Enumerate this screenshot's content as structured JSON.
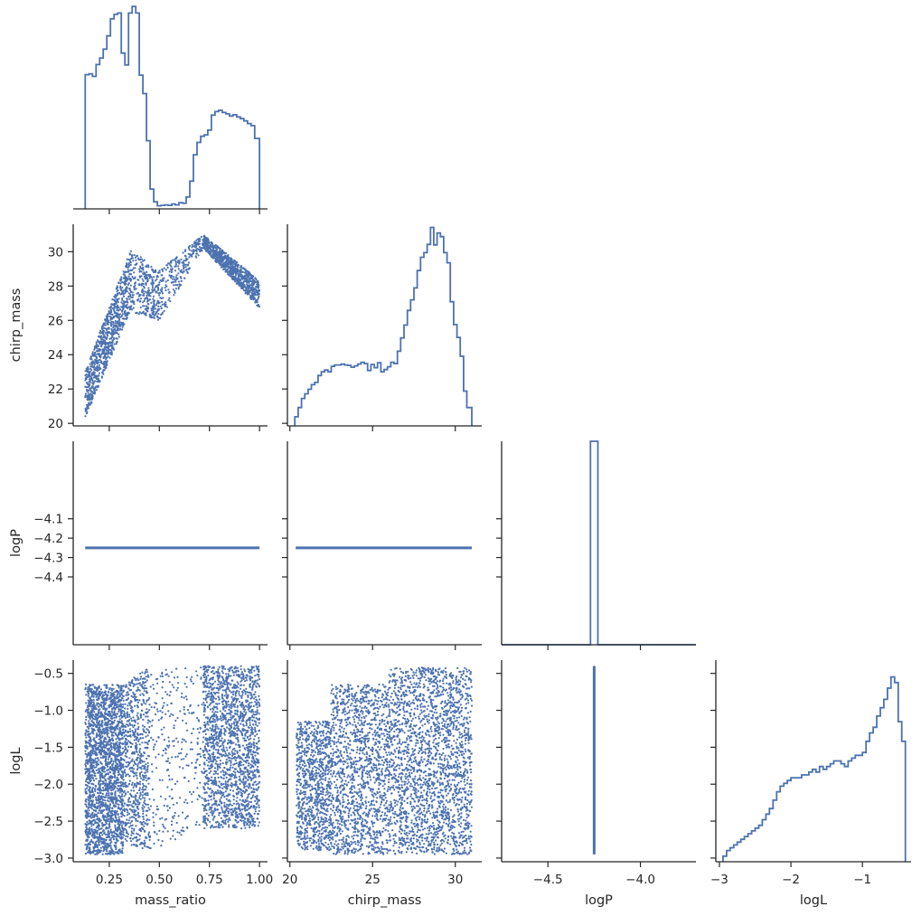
{
  "chart_data": {
    "type": "scatter",
    "layout": "corner-plot",
    "variables": [
      "mass_ratio",
      "chirp_mass",
      "logP",
      "logL"
    ],
    "color": "#4c72b0",
    "ranges": {
      "mass_ratio": [
        0.07,
        1.04
      ],
      "chirp_mass": [
        19.85,
        31.6
      ],
      "logP": [
        -4.75,
        -3.7
      ],
      "logL": [
        -3.05,
        -0.32
      ]
    },
    "hist_ranges": {
      "mass_ratio": [
        0.0,
        0.045
      ],
      "chirp_mass": [
        0.0,
        0.044
      ],
      "logP": [
        0.0,
        1.0
      ],
      "logL": [
        0.0,
        0.72
      ]
    },
    "ticks": {
      "mass_ratio": [
        {
          "v": 0.25,
          "label": "0.25"
        },
        {
          "v": 0.5,
          "label": "0.50"
        },
        {
          "v": 0.75,
          "label": "0.75"
        },
        {
          "v": 1.0,
          "label": "1.00"
        }
      ],
      "chirp_mass": [
        {
          "v": 20,
          "label": "20"
        },
        {
          "v": 25,
          "label": "25"
        },
        {
          "v": 30,
          "label": "30"
        }
      ],
      "logP": [
        {
          "v": -4.5,
          "label": "−4.5"
        },
        {
          "v": -4.0,
          "label": "−4.0"
        }
      ],
      "logL": [
        {
          "v": -3,
          "label": "−3"
        },
        {
          "v": -2,
          "label": "−2"
        },
        {
          "v": -1,
          "label": "−1"
        }
      ]
    },
    "y_ticks": {
      "chirp_mass": [
        {
          "v": 20,
          "label": "20"
        },
        {
          "v": 22,
          "label": "22"
        },
        {
          "v": 24,
          "label": "24"
        },
        {
          "v": 26,
          "label": "26"
        },
        {
          "v": 28,
          "label": "28"
        },
        {
          "v": 30,
          "label": "30"
        }
      ],
      "logP": [
        {
          "v": -4.1,
          "label": "−4.1"
        },
        {
          "v": -4.2,
          "label": "−4.2"
        },
        {
          "v": -4.3,
          "label": "−4.3"
        },
        {
          "v": -4.4,
          "label": "−4.4"
        }
      ],
      "logL": [
        {
          "v": -0.5,
          "label": "−0.5"
        },
        {
          "v": -1.0,
          "label": "−1.0"
        },
        {
          "v": -1.5,
          "label": "−1.5"
        },
        {
          "v": -2.0,
          "label": "−2.0"
        },
        {
          "v": -2.5,
          "label": "−2.5"
        },
        {
          "v": -3.0,
          "label": "−3.0"
        }
      ]
    },
    "xlabels": [
      "mass_ratio",
      "chirp_mass",
      "logP",
      "logL"
    ],
    "ylabels": [
      "",
      "chirp_mass",
      "logP",
      "logL"
    ],
    "constant_values": {
      "logP": -4.25
    },
    "histograms": {
      "mass_ratio": {
        "edges": [
          0.13,
          0.148,
          0.166,
          0.184,
          0.202,
          0.22,
          0.238,
          0.256,
          0.274,
          0.292,
          0.31,
          0.328,
          0.346,
          0.364,
          0.382,
          0.4,
          0.418,
          0.436,
          0.454,
          0.472,
          0.49,
          0.508,
          0.526,
          0.544,
          0.562,
          0.58,
          0.598,
          0.616,
          0.634,
          0.652,
          0.67,
          0.688,
          0.706,
          0.724,
          0.742,
          0.76,
          0.778,
          0.796,
          0.814,
          0.832,
          0.85,
          0.868,
          0.886,
          0.904,
          0.922,
          0.94,
          0.958,
          0.976,
          1.0
        ],
        "density": [
          0.0305,
          0.0307,
          0.0301,
          0.0328,
          0.0343,
          0.0363,
          0.0393,
          0.0432,
          0.0442,
          0.0445,
          0.0354,
          0.0327,
          0.0445,
          0.046,
          0.0445,
          0.0304,
          0.0262,
          0.0155,
          0.0045,
          0.0016,
          0.0007,
          0.0008,
          0.0009,
          0.0008,
          0.0011,
          0.0009,
          0.0014,
          0.0013,
          0.0027,
          0.0063,
          0.0123,
          0.0151,
          0.0165,
          0.0168,
          0.0179,
          0.0213,
          0.0221,
          0.0224,
          0.0219,
          0.0216,
          0.0211,
          0.0214,
          0.0209,
          0.0205,
          0.02,
          0.0194,
          0.0189,
          0.016
        ]
      },
      "chirp_mass": {
        "edges": [
          20.3,
          20.5,
          20.7,
          20.9,
          21.1,
          21.3,
          21.5,
          21.7,
          21.9,
          22.1,
          22.3,
          22.5,
          22.7,
          22.9,
          23.1,
          23.3,
          23.5,
          23.7,
          23.9,
          24.1,
          24.3,
          24.5,
          24.7,
          24.9,
          25.1,
          25.3,
          25.5,
          25.7,
          25.9,
          26.1,
          26.3,
          26.5,
          26.7,
          26.9,
          27.1,
          27.3,
          27.5,
          27.7,
          27.9,
          28.1,
          28.3,
          28.5,
          28.7,
          28.9,
          29.1,
          29.3,
          29.5,
          29.7,
          29.9,
          30.1,
          30.3,
          30.5,
          30.7,
          31.0
        ],
        "density": [
          0.002,
          0.004,
          0.006,
          0.007,
          0.008,
          0.009,
          0.0095,
          0.011,
          0.0118,
          0.0122,
          0.0118,
          0.013,
          0.0133,
          0.0133,
          0.0135,
          0.0133,
          0.0132,
          0.0128,
          0.0131,
          0.0135,
          0.0139,
          0.0136,
          0.0121,
          0.0134,
          0.0127,
          0.0138,
          0.0118,
          0.0123,
          0.0129,
          0.0139,
          0.0136,
          0.0163,
          0.0192,
          0.022,
          0.0252,
          0.0275,
          0.0301,
          0.0339,
          0.0368,
          0.0378,
          0.0396,
          0.0433,
          0.0395,
          0.0421,
          0.0413,
          0.0378,
          0.0356,
          0.0271,
          0.0221,
          0.0193,
          0.0152,
          0.0076,
          0.004
        ]
      },
      "logP": {
        "edges": [
          -4.75,
          -4.27,
          -4.23,
          -3.7
        ],
        "density": [
          0.0,
          1.0,
          0.0
        ]
      },
      "logL": {
        "edges": [
          -2.95,
          -2.9,
          -2.85,
          -2.8,
          -2.75,
          -2.7,
          -2.65,
          -2.6,
          -2.55,
          -2.5,
          -2.45,
          -2.4,
          -2.35,
          -2.3,
          -2.25,
          -2.2,
          -2.15,
          -2.1,
          -2.05,
          -2.0,
          -1.95,
          -1.9,
          -1.85,
          -1.8,
          -1.75,
          -1.7,
          -1.65,
          -1.6,
          -1.55,
          -1.5,
          -1.45,
          -1.4,
          -1.35,
          -1.3,
          -1.25,
          -1.2,
          -1.15,
          -1.1,
          -1.05,
          -1.0,
          -0.95,
          -0.9,
          -0.85,
          -0.8,
          -0.75,
          -0.7,
          -0.65,
          -0.6,
          -0.55,
          -0.5,
          -0.45,
          -0.4
        ],
        "density": [
          0.02,
          0.04,
          0.05,
          0.06,
          0.07,
          0.08,
          0.09,
          0.1,
          0.11,
          0.12,
          0.13,
          0.15,
          0.17,
          0.19,
          0.22,
          0.25,
          0.27,
          0.28,
          0.29,
          0.3,
          0.3,
          0.3,
          0.31,
          0.31,
          0.32,
          0.33,
          0.32,
          0.34,
          0.33,
          0.34,
          0.35,
          0.36,
          0.36,
          0.35,
          0.34,
          0.36,
          0.37,
          0.38,
          0.38,
          0.39,
          0.43,
          0.46,
          0.48,
          0.52,
          0.55,
          0.58,
          0.62,
          0.66,
          0.64,
          0.5,
          0.43
        ]
      }
    },
    "scatter_regions": {
      "mass_ratio|chirp_mass": [
        {
          "x": [
            0.13,
            0.36
          ],
          "y_lo": [
            20.3,
            26.7
          ],
          "y_hi": [
            23.0,
            30.2
          ],
          "density": 900
        },
        {
          "x": [
            0.36,
            0.5
          ],
          "y_lo": [
            26.5,
            26.0
          ],
          "y_hi": [
            30.2,
            28.8
          ],
          "density": 300
        },
        {
          "x": [
            0.5,
            0.72
          ],
          "y_lo": [
            26.0,
            30.2
          ],
          "y_hi": [
            28.9,
            31.0
          ],
          "density": 250
        },
        {
          "x": [
            0.72,
            1.0
          ],
          "y_lo": [
            30.2,
            26.7
          ],
          "y_hi": [
            31.0,
            28.3
          ],
          "density": 800
        }
      ],
      "mass_ratio|logL": [
        {
          "x": [
            0.13,
            0.32
          ],
          "y_lo": [
            -2.95,
            -2.95
          ],
          "y_hi": [
            -0.65,
            -0.65
          ],
          "density": 2200
        },
        {
          "x": [
            0.32,
            0.45
          ],
          "y_lo": [
            -2.8,
            -2.9
          ],
          "y_hi": [
            -0.65,
            -0.42
          ],
          "density": 700
        },
        {
          "x": [
            0.45,
            0.72
          ],
          "y_lo": [
            -2.9,
            -2.6
          ],
          "y_hi": [
            -0.42,
            -0.42
          ],
          "density": 300
        },
        {
          "x": [
            0.72,
            1.0
          ],
          "y_lo": [
            -2.6,
            -2.6
          ],
          "y_hi": [
            -0.4,
            -0.4
          ],
          "density": 1800
        }
      ],
      "chirp_mass|logL": [
        {
          "x": [
            20.4,
            22.5
          ],
          "y_lo": [
            -2.9,
            -2.9
          ],
          "y_hi": [
            -1.15,
            -1.15
          ],
          "density": 900
        },
        {
          "x": [
            22.5,
            26.0
          ],
          "y_lo": [
            -2.95,
            -2.95
          ],
          "y_hi": [
            -0.65,
            -0.65
          ],
          "density": 1400
        },
        {
          "x": [
            26.0,
            31.0
          ],
          "y_lo": [
            -2.95,
            -2.95
          ],
          "y_hi": [
            -0.42,
            -0.42
          ],
          "density": 2200
        }
      ]
    }
  }
}
